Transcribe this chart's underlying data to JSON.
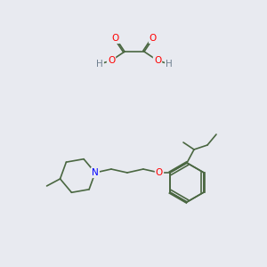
{
  "bg_color": "#e8eaf0",
  "bond_color": "#4a6741",
  "atom_colors": {
    "O": "#ff0000",
    "N": "#0000ff",
    "H": "#708090",
    "C": "#4a6741"
  },
  "font_size_atom": 7.5,
  "line_width": 1.2
}
